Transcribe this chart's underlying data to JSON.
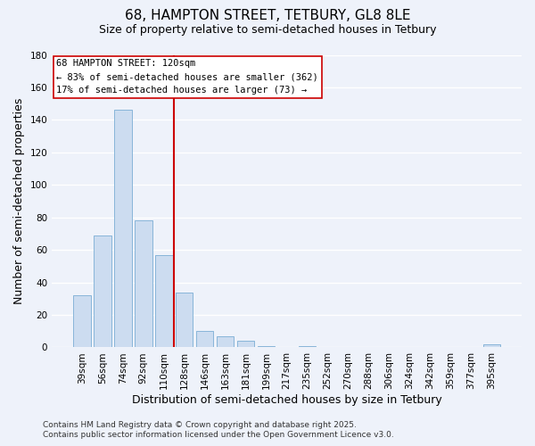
{
  "title": "68, HAMPTON STREET, TETBURY, GL8 8LE",
  "subtitle": "Size of property relative to semi-detached houses in Tetbury",
  "xlabel": "Distribution of semi-detached houses by size in Tetbury",
  "ylabel": "Number of semi-detached properties",
  "bar_labels": [
    "39sqm",
    "56sqm",
    "74sqm",
    "92sqm",
    "110sqm",
    "128sqm",
    "146sqm",
    "163sqm",
    "181sqm",
    "199sqm",
    "217sqm",
    "235sqm",
    "252sqm",
    "270sqm",
    "288sqm",
    "306sqm",
    "324sqm",
    "342sqm",
    "359sqm",
    "377sqm",
    "395sqm"
  ],
  "bar_values": [
    32,
    69,
    146,
    78,
    57,
    34,
    10,
    7,
    4,
    1,
    0,
    1,
    0,
    0,
    0,
    0,
    0,
    0,
    0,
    0,
    2
  ],
  "bar_color": "#ccdcf0",
  "bar_edge_color": "#7aadd4",
  "ylim": [
    0,
    180
  ],
  "yticks": [
    0,
    20,
    40,
    60,
    80,
    100,
    120,
    140,
    160,
    180
  ],
  "vline_after_bar": 4,
  "vline_color": "#cc0000",
  "annotation_title": "68 HAMPTON STREET: 120sqm",
  "annotation_line1": "← 83% of semi-detached houses are smaller (362)",
  "annotation_line2": "17% of semi-detached houses are larger (73) →",
  "annotation_box_color": "#ffffff",
  "annotation_box_edge": "#cc0000",
  "footer1": "Contains HM Land Registry data © Crown copyright and database right 2025.",
  "footer2": "Contains public sector information licensed under the Open Government Licence v3.0.",
  "background_color": "#eef2fa",
  "grid_color": "#ffffff",
  "title_fontsize": 11,
  "subtitle_fontsize": 9,
  "axis_label_fontsize": 9,
  "tick_fontsize": 7.5,
  "annotation_fontsize": 7.5,
  "footer_fontsize": 6.5
}
